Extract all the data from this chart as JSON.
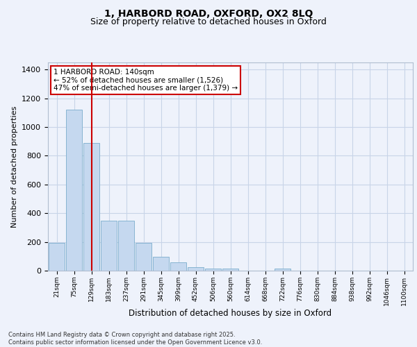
{
  "title_line1": "1, HARBORD ROAD, OXFORD, OX2 8LQ",
  "title_line2": "Size of property relative to detached houses in Oxford",
  "xlabel": "Distribution of detached houses by size in Oxford",
  "ylabel": "Number of detached properties",
  "categories": [
    "21sqm",
    "75sqm",
    "129sqm",
    "183sqm",
    "237sqm",
    "291sqm",
    "345sqm",
    "399sqm",
    "452sqm",
    "506sqm",
    "560sqm",
    "614sqm",
    "668sqm",
    "722sqm",
    "776sqm",
    "830sqm",
    "884sqm",
    "938sqm",
    "992sqm",
    "1046sqm",
    "1100sqm"
  ],
  "values": [
    195,
    1120,
    890,
    350,
    350,
    195,
    95,
    60,
    25,
    15,
    15,
    0,
    0,
    15,
    0,
    0,
    0,
    0,
    0,
    0,
    0
  ],
  "bar_color": "#c5d8ef",
  "bar_edge_color": "#7aadcc",
  "background_color": "#eef2fb",
  "grid_color": "#c8d4e8",
  "red_line_x": 2.0,
  "annotation_text": "1 HARBORD ROAD: 140sqm\n← 52% of detached houses are smaller (1,526)\n47% of semi-detached houses are larger (1,379) →",
  "annotation_box_color": "#ffffff",
  "annotation_box_edge": "#cc0000",
  "red_line_color": "#cc0000",
  "ylim": [
    0,
    1450
  ],
  "yticks": [
    0,
    200,
    400,
    600,
    800,
    1000,
    1200,
    1400
  ],
  "footnote": "Contains HM Land Registry data © Crown copyright and database right 2025.\nContains public sector information licensed under the Open Government Licence v3.0."
}
